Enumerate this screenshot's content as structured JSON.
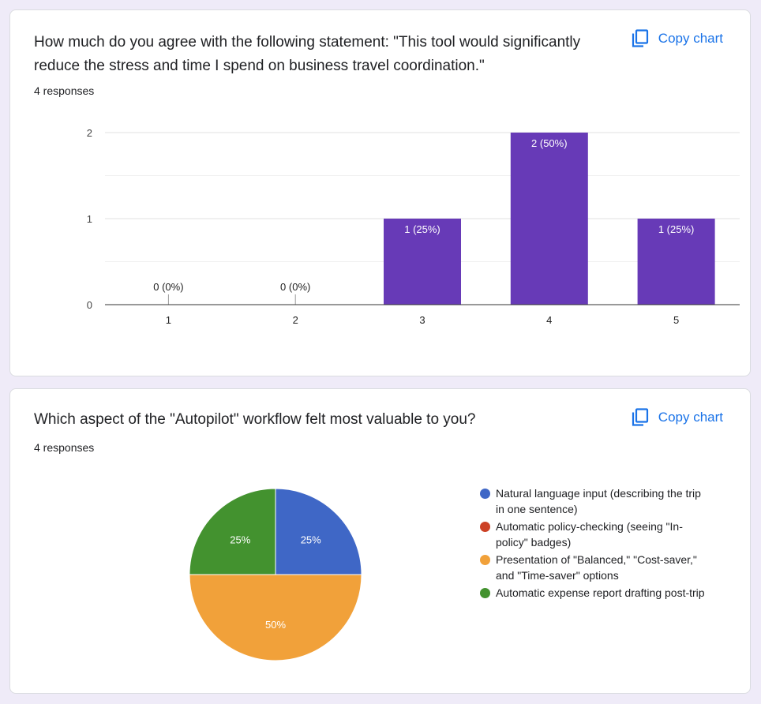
{
  "copy_label": "Copy chart",
  "cards": [
    {
      "title": "How much do you agree with the following statement: \"This tool would significantly reduce the stress and time I spend on business travel coordination.\"",
      "responses": "4 responses"
    },
    {
      "title": "Which aspect of the \"Autopilot\" workflow felt most valuable to you?",
      "responses": "4 responses"
    }
  ],
  "chart_data": [
    {
      "type": "bar",
      "categories": [
        "1",
        "2",
        "3",
        "4",
        "5"
      ],
      "values": [
        0,
        0,
        1,
        2,
        1
      ],
      "labels": [
        "0 (0%)",
        "0 (0%)",
        "1 (25%)",
        "2 (50%)",
        "1 (25%)"
      ],
      "yticks": [
        0,
        1,
        2
      ],
      "ylim": [
        0,
        2
      ],
      "grid": true,
      "bar_color": "#673ab7"
    },
    {
      "type": "pie",
      "legend_position": "right",
      "slices": [
        {
          "label": "Natural language input (describing the trip in one sentence)",
          "value": 25,
          "display": "25%",
          "color": "#3f67c6"
        },
        {
          "label": "Automatic policy-checking (seeing \"In-policy\" badges)",
          "value": 0,
          "display": "",
          "color": "#cc4125"
        },
        {
          "label": "Presentation of \"Balanced,\" \"Cost-saver,\" and \"Time-saver\" options",
          "value": 50,
          "display": "50%",
          "color": "#f1a13a"
        },
        {
          "label": "Automatic expense report drafting post-trip",
          "value": 25,
          "display": "25%",
          "color": "#43922f"
        }
      ]
    }
  ]
}
